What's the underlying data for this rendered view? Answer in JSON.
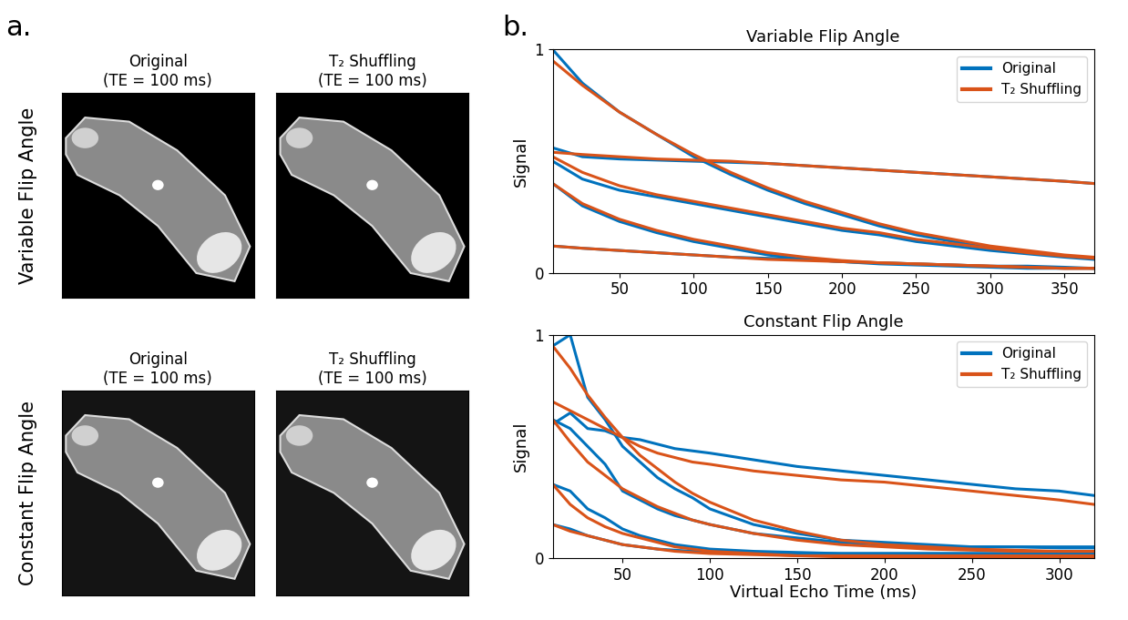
{
  "chart_data": [
    {
      "type": "line",
      "title": "Variable Flip Angle",
      "y_label": "Signal",
      "x": [
        5,
        25,
        50,
        75,
        100,
        125,
        150,
        175,
        200,
        225,
        250,
        275,
        300,
        325,
        350,
        370
      ],
      "xlim": [
        5,
        370
      ],
      "xticks": [
        50,
        100,
        150,
        200,
        250,
        300,
        350
      ],
      "ylim": [
        0,
        1
      ],
      "yticks": [
        0,
        1
      ],
      "legend": "upper right",
      "series": [
        {
          "name": "Original",
          "color": "#0072bd",
          "values": [
            [
              1.0,
              0.85,
              0.72,
              0.62,
              0.52,
              0.44,
              0.37,
              0.31,
              0.26,
              0.21,
              0.17,
              0.14,
              0.11,
              0.09,
              0.075,
              0.065
            ],
            [
              0.56,
              0.52,
              0.51,
              0.505,
              0.5,
              0.495,
              0.49,
              0.48,
              0.47,
              0.46,
              0.45,
              0.44,
              0.43,
              0.42,
              0.41,
              0.4
            ],
            [
              0.5,
              0.42,
              0.37,
              0.34,
              0.31,
              0.28,
              0.25,
              0.22,
              0.19,
              0.17,
              0.14,
              0.12,
              0.1,
              0.085,
              0.07,
              0.06
            ],
            [
              0.4,
              0.3,
              0.23,
              0.18,
              0.14,
              0.11,
              0.08,
              0.06,
              0.05,
              0.04,
              0.035,
              0.03,
              0.025,
              0.02,
              0.02,
              0.02
            ],
            [
              0.12,
              0.11,
              0.1,
              0.09,
              0.08,
              0.07,
              0.065,
              0.06,
              0.05,
              0.045,
              0.04,
              0.035,
              0.03,
              0.03,
              0.025,
              0.02
            ]
          ]
        },
        {
          "name": "T₂ Shuffling",
          "color": "#d95319",
          "values": [
            [
              0.95,
              0.84,
              0.72,
              0.62,
              0.53,
              0.45,
              0.38,
              0.32,
              0.27,
              0.22,
              0.18,
              0.15,
              0.12,
              0.1,
              0.08,
              0.07
            ],
            [
              0.54,
              0.53,
              0.52,
              0.51,
              0.505,
              0.5,
              0.49,
              0.48,
              0.47,
              0.46,
              0.45,
              0.44,
              0.43,
              0.42,
              0.41,
              0.4
            ],
            [
              0.52,
              0.45,
              0.39,
              0.35,
              0.32,
              0.29,
              0.26,
              0.23,
              0.2,
              0.18,
              0.15,
              0.13,
              0.11,
              0.09,
              0.075,
              0.065
            ],
            [
              0.4,
              0.31,
              0.24,
              0.19,
              0.15,
              0.12,
              0.09,
              0.07,
              0.055,
              0.045,
              0.04,
              0.035,
              0.03,
              0.025,
              0.02,
              0.02
            ],
            [
              0.12,
              0.11,
              0.1,
              0.09,
              0.08,
              0.07,
              0.06,
              0.055,
              0.05,
              0.045,
              0.04,
              0.035,
              0.03,
              0.025,
              0.02,
              0.02
            ]
          ]
        }
      ]
    },
    {
      "type": "line",
      "title": "Constant Flip Angle",
      "y_label": "Signal",
      "x_label": "Virtual Echo Time (ms)",
      "x": [
        10,
        20,
        30,
        40,
        50,
        60,
        70,
        80,
        90,
        100,
        125,
        150,
        175,
        200,
        225,
        250,
        275,
        300,
        320
      ],
      "xlim": [
        10,
        320
      ],
      "xticks": [
        50,
        100,
        150,
        200,
        250,
        300
      ],
      "ylim": [
        0,
        1
      ],
      "yticks": [
        0,
        1
      ],
      "legend": "upper right",
      "series": [
        {
          "name": "Original",
          "color": "#0072bd",
          "values": [
            [
              0.95,
              1.0,
              0.72,
              0.62,
              0.5,
              0.43,
              0.36,
              0.31,
              0.27,
              0.22,
              0.15,
              0.11,
              0.08,
              0.07,
              0.06,
              0.05,
              0.05,
              0.045,
              0.045
            ],
            [
              0.6,
              0.65,
              0.58,
              0.57,
              0.54,
              0.53,
              0.51,
              0.49,
              0.48,
              0.47,
              0.44,
              0.41,
              0.39,
              0.37,
              0.35,
              0.33,
              0.31,
              0.3,
              0.28
            ],
            [
              0.62,
              0.58,
              0.5,
              0.42,
              0.3,
              0.26,
              0.22,
              0.19,
              0.17,
              0.15,
              0.11,
              0.09,
              0.07,
              0.06,
              0.05,
              0.05,
              0.05,
              0.05,
              0.05
            ],
            [
              0.33,
              0.3,
              0.22,
              0.18,
              0.13,
              0.1,
              0.08,
              0.06,
              0.05,
              0.04,
              0.03,
              0.025,
              0.02,
              0.02,
              0.02,
              0.02,
              0.02,
              0.02,
              0.02
            ],
            [
              0.15,
              0.13,
              0.1,
              0.08,
              0.06,
              0.05,
              0.04,
              0.035,
              0.03,
              0.03,
              0.025,
              0.02,
              0.02,
              0.02,
              0.02,
              0.02,
              0.02,
              0.02,
              0.02
            ]
          ]
        },
        {
          "name": "T₂ Shuffling",
          "color": "#d95319",
          "values": [
            [
              0.95,
              0.85,
              0.73,
              0.63,
              0.54,
              0.46,
              0.4,
              0.34,
              0.29,
              0.25,
              0.17,
              0.12,
              0.08,
              0.06,
              0.05,
              0.04,
              0.035,
              0.03,
              0.03
            ],
            [
              0.7,
              0.66,
              0.62,
              0.58,
              0.54,
              0.5,
              0.47,
              0.45,
              0.43,
              0.42,
              0.39,
              0.37,
              0.35,
              0.34,
              0.32,
              0.3,
              0.28,
              0.26,
              0.24
            ],
            [
              0.62,
              0.52,
              0.43,
              0.37,
              0.31,
              0.27,
              0.23,
              0.2,
              0.17,
              0.15,
              0.11,
              0.08,
              0.06,
              0.05,
              0.04,
              0.035,
              0.03,
              0.03,
              0.03
            ],
            [
              0.33,
              0.24,
              0.18,
              0.14,
              0.11,
              0.09,
              0.07,
              0.05,
              0.04,
              0.03,
              0.02,
              0.01,
              0.005,
              0.0,
              0.0,
              0.0,
              0.0,
              0.0,
              0.0
            ],
            [
              0.15,
              0.12,
              0.1,
              0.08,
              0.06,
              0.05,
              0.04,
              0.03,
              0.025,
              0.02,
              0.015,
              0.01,
              0.01,
              0.01,
              0.01,
              0.01,
              0.01,
              0.01,
              0.01
            ]
          ]
        }
      ]
    }
  ],
  "panel_labels": [
    "a.",
    "b."
  ],
  "images": {
    "row_labels": [
      "Variable Flip Angle",
      "Constant Flip Angle"
    ],
    "titles": [
      [
        "Original\n(TE = 100 ms)",
        "T₂ Shuffling\n(TE = 100 ms)"
      ],
      [
        "Original\n(TE = 100 ms)",
        "T₂ Shuffling\n(TE = 100 ms)"
      ]
    ]
  }
}
